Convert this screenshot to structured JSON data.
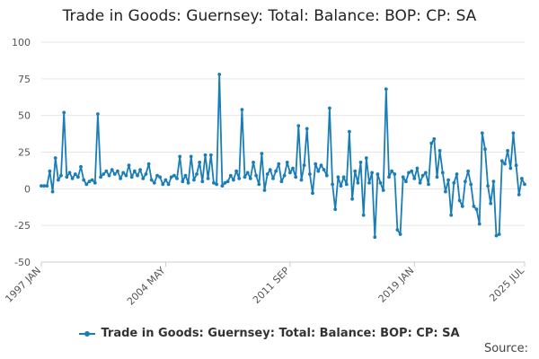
{
  "title": "Trade in Goods: Guernsey: Total: Balance: BOP: CP: SA",
  "source_label": "Source:",
  "chart_data": {
    "type": "line",
    "title": "Trade in Goods: Guernsey: Total: Balance: BOP: CP: SA",
    "xlabel": "",
    "ylabel": "",
    "ylim": [
      -50,
      100
    ],
    "yticks": [
      -50,
      -25,
      0,
      25,
      50,
      75,
      100
    ],
    "xlim": [
      "1997 JAN",
      "2025 JUL"
    ],
    "xtick_labels": [
      "1997 JAN",
      "2004 MAY",
      "2011 SEP",
      "2019 JAN",
      "2025 JUL"
    ],
    "grid": true,
    "legend_position": "bottom",
    "series": [
      {
        "name": "Trade in Goods: Guernsey: Total: Balance: BOP: CP: SA",
        "color": "#1a7db7",
        "points": [
          [
            "1997 JAN",
            2
          ],
          [
            "1997 MAR",
            2
          ],
          [
            "1997 MAY",
            2
          ],
          [
            "1997 JUL",
            12
          ],
          [
            "1997 SEP",
            -2
          ],
          [
            "1997 NOV",
            21
          ],
          [
            "1998 JAN",
            6
          ],
          [
            "1998 MAR",
            9
          ],
          [
            "1998 MAY",
            52
          ],
          [
            "1998 JUL",
            8
          ],
          [
            "1998 SEP",
            11
          ],
          [
            "1998 NOV",
            7
          ],
          [
            "1999 JAN",
            10
          ],
          [
            "1999 MAR",
            8
          ],
          [
            "1999 MAY",
            15
          ],
          [
            "1999 JUL",
            6
          ],
          [
            "1999 SEP",
            3
          ],
          [
            "1999 NOV",
            5
          ],
          [
            "2000 JAN",
            6
          ],
          [
            "2000 MAR",
            4
          ],
          [
            "2000 MAY",
            51
          ],
          [
            "2000 JUL",
            8
          ],
          [
            "2000 SEP",
            10
          ],
          [
            "2000 NOV",
            12
          ],
          [
            "2001 JAN",
            9
          ],
          [
            "2001 MAR",
            13
          ],
          [
            "2001 MAY",
            10
          ],
          [
            "2001 JUL",
            12
          ],
          [
            "2001 SEP",
            7
          ],
          [
            "2001 NOV",
            11
          ],
          [
            "2002 JAN",
            9
          ],
          [
            "2002 MAR",
            16
          ],
          [
            "2002 MAY",
            8
          ],
          [
            "2002 JUL",
            12
          ],
          [
            "2002 SEP",
            9
          ],
          [
            "2002 NOV",
            13
          ],
          [
            "2003 JAN",
            7
          ],
          [
            "2003 MAR",
            10
          ],
          [
            "2003 MAY",
            17
          ],
          [
            "2003 JUL",
            6
          ],
          [
            "2003 SEP",
            4
          ],
          [
            "2003 NOV",
            9
          ],
          [
            "2004 JAN",
            8
          ],
          [
            "2004 MAR",
            3
          ],
          [
            "2004 MAY",
            6
          ],
          [
            "2004 JUL",
            3
          ],
          [
            "2004 SEP",
            8
          ],
          [
            "2004 NOV",
            9
          ],
          [
            "2005 JAN",
            7
          ],
          [
            "2005 MAR",
            22
          ],
          [
            "2005 MAY",
            5
          ],
          [
            "2005 JUL",
            9
          ],
          [
            "2005 SEP",
            4
          ],
          [
            "2005 NOV",
            22
          ],
          [
            "2006 JAN",
            6
          ],
          [
            "2006 MAR",
            10
          ],
          [
            "2006 MAY",
            18
          ],
          [
            "2006 JUL",
            5
          ],
          [
            "2006 SEP",
            23
          ],
          [
            "2006 NOV",
            7
          ],
          [
            "2007 JAN",
            23
          ],
          [
            "2007 MAR",
            4
          ],
          [
            "2007 MAY",
            3
          ],
          [
            "2007 JUL",
            78
          ],
          [
            "2007 SEP",
            2
          ],
          [
            "2007 NOV",
            4
          ],
          [
            "2008 JAN",
            5
          ],
          [
            "2008 MAR",
            9
          ],
          [
            "2008 MAY",
            6
          ],
          [
            "2008 JUL",
            12
          ],
          [
            "2008 SEP",
            7
          ],
          [
            "2008 NOV",
            54
          ],
          [
            "2009 JAN",
            8
          ],
          [
            "2009 MAR",
            11
          ],
          [
            "2009 MAY",
            7
          ],
          [
            "2009 JUL",
            18
          ],
          [
            "2009 SEP",
            9
          ],
          [
            "2009 NOV",
            3
          ],
          [
            "2010 JAN",
            24
          ],
          [
            "2010 MAR",
            -1
          ],
          [
            "2010 MAY",
            10
          ],
          [
            "2010 JUL",
            13
          ],
          [
            "2010 SEP",
            7
          ],
          [
            "2010 NOV",
            12
          ],
          [
            "2011 JAN",
            17
          ],
          [
            "2011 MAR",
            5
          ],
          [
            "2011 MAY",
            9
          ],
          [
            "2011 JUL",
            18
          ],
          [
            "2011 SEP",
            11
          ],
          [
            "2011 NOV",
            14
          ],
          [
            "2012 JAN",
            8
          ],
          [
            "2012 MAR",
            43
          ],
          [
            "2012 MAY",
            6
          ],
          [
            "2012 JUL",
            16
          ],
          [
            "2012 SEP",
            41
          ],
          [
            "2012 NOV",
            10
          ],
          [
            "2013 JAN",
            -3
          ],
          [
            "2013 MAR",
            17
          ],
          [
            "2013 MAY",
            12
          ],
          [
            "2013 JUL",
            16
          ],
          [
            "2013 SEP",
            13
          ],
          [
            "2013 NOV",
            9
          ],
          [
            "2014 JAN",
            55
          ],
          [
            "2014 MAR",
            3
          ],
          [
            "2014 MAY",
            -14
          ],
          [
            "2014 JUL",
            8
          ],
          [
            "2014 SEP",
            2
          ],
          [
            "2014 NOV",
            8
          ],
          [
            "2015 JAN",
            3
          ],
          [
            "2015 MAR",
            39
          ],
          [
            "2015 MAY",
            -7
          ],
          [
            "2015 JUL",
            12
          ],
          [
            "2015 SEP",
            4
          ],
          [
            "2015 NOV",
            18
          ],
          [
            "2016 JAN",
            -18
          ],
          [
            "2016 MAR",
            21
          ],
          [
            "2016 MAY",
            4
          ],
          [
            "2016 JUL",
            11
          ],
          [
            "2016 SEP",
            -33
          ],
          [
            "2016 NOV",
            10
          ],
          [
            "2017 JAN",
            4
          ],
          [
            "2017 MAR",
            -1
          ],
          [
            "2017 MAY",
            68
          ],
          [
            "2017 JUL",
            8
          ],
          [
            "2017 SEP",
            12
          ],
          [
            "2017 NOV",
            10
          ],
          [
            "2018 JAN",
            -28
          ],
          [
            "2018 MAR",
            -31
          ],
          [
            "2018 MAY",
            8
          ],
          [
            "2018 JUL",
            5
          ],
          [
            "2018 SEP",
            11
          ],
          [
            "2018 NOV",
            12
          ],
          [
            "2019 JAN",
            7
          ],
          [
            "2019 MAR",
            14
          ],
          [
            "2019 MAY",
            4
          ],
          [
            "2019 JUL",
            9
          ],
          [
            "2019 SEP",
            11
          ],
          [
            "2019 NOV",
            3
          ],
          [
            "2020 JAN",
            31
          ],
          [
            "2020 MAR",
            34
          ],
          [
            "2020 MAY",
            8
          ],
          [
            "2020 JUL",
            26
          ],
          [
            "2020 SEP",
            11
          ],
          [
            "2020 NOV",
            -2
          ],
          [
            "2021 JAN",
            6
          ],
          [
            "2021 MAR",
            -18
          ],
          [
            "2021 MAY",
            4
          ],
          [
            "2021 JUL",
            10
          ],
          [
            "2021 SEP",
            -8
          ],
          [
            "2021 NOV",
            -12
          ],
          [
            "2022 JAN",
            5
          ],
          [
            "2022 MAR",
            12
          ],
          [
            "2022 MAY",
            3
          ],
          [
            "2022 JUL",
            -12
          ],
          [
            "2022 SEP",
            -14
          ],
          [
            "2022 NOV",
            -24
          ],
          [
            "2023 JAN",
            38
          ],
          [
            "2023 MAR",
            27
          ],
          [
            "2023 MAY",
            2
          ],
          [
            "2023 JUL",
            -10
          ],
          [
            "2023 SEP",
            5
          ],
          [
            "2023 NOV",
            -32
          ],
          [
            "2024 JAN",
            -31
          ],
          [
            "2024 MAR",
            19
          ],
          [
            "2024 MAY",
            17
          ],
          [
            "2024 JUL",
            26
          ],
          [
            "2024 SEP",
            14
          ],
          [
            "2024 NOV",
            38
          ],
          [
            "2025 JAN",
            16
          ],
          [
            "2025 MAR",
            -4
          ],
          [
            "2025 MAY",
            7
          ],
          [
            "2025 JUL",
            3
          ]
        ]
      }
    ]
  }
}
